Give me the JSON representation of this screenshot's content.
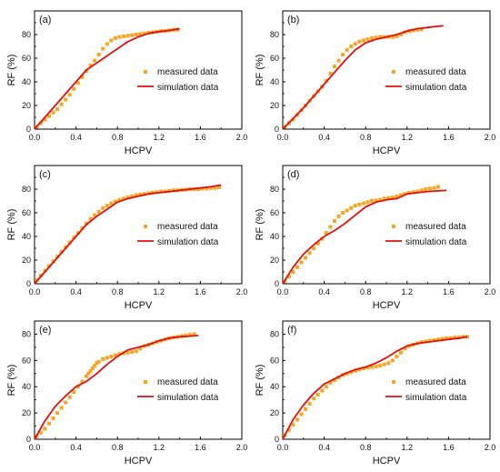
{
  "chart_data": [
    {
      "panel": "(a)",
      "type": "scatter+line",
      "xlabel": "HCPV",
      "ylabel": "RF (%)",
      "xlim": [
        0.0,
        2.0
      ],
      "ylim": [
        0,
        100
      ],
      "xticks": [
        "0.0",
        "0.4",
        "0.8",
        "1.2",
        "1.6",
        "2.0"
      ],
      "yticks": [
        "0",
        "20",
        "40",
        "60",
        "80"
      ],
      "legend": {
        "position": "center-right",
        "entries": [
          "measured data",
          "simulation data"
        ]
      },
      "series": [
        {
          "name": "measured data",
          "kind": "scatter",
          "x": [
            0.02,
            0.06,
            0.1,
            0.14,
            0.18,
            0.22,
            0.26,
            0.3,
            0.34,
            0.38,
            0.42,
            0.46,
            0.5,
            0.54,
            0.58,
            0.62,
            0.66,
            0.7,
            0.74,
            0.78,
            0.82,
            0.86,
            0.9,
            0.94,
            0.98,
            1.02,
            1.06,
            1.1,
            1.14,
            1.18,
            1.22,
            1.26,
            1.3,
            1.34,
            1.38
          ],
          "y": [
            2,
            5,
            8,
            11,
            14,
            17,
            21,
            25,
            29,
            34,
            39,
            44,
            49,
            54,
            58,
            63,
            68,
            72,
            75,
            77,
            78,
            78.5,
            79,
            79.5,
            80,
            80.5,
            81,
            81.5,
            82,
            82.5,
            83,
            83,
            83.5,
            84,
            84
          ]
        },
        {
          "name": "simulation data",
          "kind": "line",
          "x": [
            0,
            0.2,
            0.4,
            0.5,
            0.6,
            0.7,
            0.8,
            0.9,
            1.0,
            1.1,
            1.2,
            1.3,
            1.4
          ],
          "y": [
            0,
            20,
            40,
            50,
            56,
            62,
            68,
            74,
            78,
            81,
            82.5,
            83.5,
            85
          ]
        }
      ]
    },
    {
      "panel": "(b)",
      "type": "scatter+line",
      "xlabel": "HCPV",
      "ylabel": "RF (%)",
      "xlim": [
        0.0,
        2.0
      ],
      "ylim": [
        0,
        100
      ],
      "xticks": [
        "0.0",
        "0.4",
        "0.8",
        "1.2",
        "1.6",
        "2.0"
      ],
      "yticks": [
        "0",
        "20",
        "40",
        "60",
        "80"
      ],
      "legend": {
        "position": "center-right",
        "entries": [
          "measured data",
          "simulation data"
        ]
      },
      "series": [
        {
          "name": "measured data",
          "kind": "scatter",
          "x": [
            0.02,
            0.06,
            0.1,
            0.14,
            0.18,
            0.22,
            0.26,
            0.3,
            0.34,
            0.38,
            0.42,
            0.46,
            0.5,
            0.54,
            0.58,
            0.62,
            0.66,
            0.7,
            0.74,
            0.78,
            0.82,
            0.86,
            0.9,
            0.94,
            0.98,
            1.02,
            1.06,
            1.1,
            1.14,
            1.18,
            1.22,
            1.26,
            1.3,
            1.34
          ],
          "y": [
            2,
            5,
            8,
            12,
            16,
            20,
            24,
            28,
            32,
            36,
            41,
            47,
            53,
            58,
            63,
            67,
            70,
            72,
            74,
            75,
            76,
            77,
            77.5,
            78,
            78,
            78,
            78,
            78.5,
            80,
            82,
            83,
            83.5,
            84,
            84.5
          ]
        },
        {
          "name": "simulation data",
          "kind": "line",
          "x": [
            0,
            0.2,
            0.4,
            0.5,
            0.6,
            0.7,
            0.8,
            0.9,
            1.0,
            1.1,
            1.2,
            1.3,
            1.4,
            1.5,
            1.55
          ],
          "y": [
            0,
            18,
            38,
            48,
            58,
            67,
            73,
            76,
            78,
            80,
            83,
            85,
            86,
            87,
            87.5
          ]
        }
      ]
    },
    {
      "panel": "(c)",
      "type": "scatter+line",
      "xlabel": "HCPV",
      "ylabel": "RF (%)",
      "xlim": [
        0.0,
        2.0
      ],
      "ylim": [
        0,
        100
      ],
      "xticks": [
        "0.0",
        "0.4",
        "0.8",
        "1.2",
        "1.6",
        "2.0"
      ],
      "yticks": [
        "0",
        "20",
        "40",
        "60",
        "80"
      ],
      "legend": {
        "position": "center-right",
        "entries": [
          "measured data",
          "simulation data"
        ]
      },
      "series": [
        {
          "name": "measured data",
          "kind": "scatter",
          "x": [
            0.02,
            0.06,
            0.1,
            0.14,
            0.18,
            0.22,
            0.26,
            0.3,
            0.34,
            0.38,
            0.42,
            0.46,
            0.5,
            0.54,
            0.58,
            0.62,
            0.66,
            0.7,
            0.74,
            0.78,
            0.82,
            0.86,
            0.9,
            0.94,
            0.98,
            1.02,
            1.06,
            1.1,
            1.14,
            1.18,
            1.22,
            1.26,
            1.3,
            1.34,
            1.38,
            1.42,
            1.46,
            1.5,
            1.54,
            1.58,
            1.62,
            1.66,
            1.7,
            1.74,
            1.78
          ],
          "y": [
            3,
            7,
            11,
            15,
            19,
            23,
            27,
            31,
            35,
            39,
            43,
            47,
            51,
            55,
            58,
            61,
            64,
            66,
            68,
            69.5,
            71,
            72,
            73,
            74,
            75,
            75.5,
            76,
            76.5,
            77,
            77.5,
            78,
            78,
            78.5,
            79,
            79,
            79.5,
            79.5,
            80,
            80,
            80,
            80.5,
            80.5,
            81,
            81,
            81.5
          ]
        },
        {
          "name": "simulation data",
          "kind": "line",
          "x": [
            0,
            0.2,
            0.4,
            0.5,
            0.6,
            0.7,
            0.8,
            0.9,
            1.0,
            1.1,
            1.2,
            1.3,
            1.4,
            1.5,
            1.6,
            1.7,
            1.8
          ],
          "y": [
            0,
            20,
            40,
            50,
            57,
            63,
            69,
            72,
            74,
            76,
            77,
            78,
            79,
            80,
            81,
            82,
            83.5
          ]
        }
      ]
    },
    {
      "panel": "(d)",
      "type": "scatter+line",
      "xlabel": "HCPV",
      "ylabel": "RF (%)",
      "xlim": [
        0.0,
        2.0
      ],
      "ylim": [
        0,
        100
      ],
      "xticks": [
        "0.0",
        "0.4",
        "0.8",
        "1.2",
        "1.6",
        "2.0"
      ],
      "yticks": [
        "0",
        "20",
        "40",
        "60",
        "80"
      ],
      "legend": {
        "position": "center-right",
        "entries": [
          "measured data",
          "simulation data"
        ]
      },
      "series": [
        {
          "name": "measured data",
          "kind": "scatter",
          "x": [
            0.02,
            0.06,
            0.1,
            0.14,
            0.18,
            0.22,
            0.26,
            0.3,
            0.34,
            0.38,
            0.42,
            0.46,
            0.5,
            0.54,
            0.58,
            0.62,
            0.66,
            0.7,
            0.74,
            0.78,
            0.82,
            0.86,
            0.9,
            0.94,
            0.98,
            1.02,
            1.06,
            1.1,
            1.14,
            1.18,
            1.22,
            1.26,
            1.3,
            1.34,
            1.38,
            1.42,
            1.46,
            1.5
          ],
          "y": [
            2,
            6,
            10,
            14,
            18,
            22,
            26,
            30,
            34,
            38,
            43,
            48,
            53,
            57,
            60,
            62,
            64,
            66,
            67,
            68,
            69,
            70,
            70.5,
            71,
            72,
            72.5,
            73,
            74,
            75,
            76,
            77,
            77.5,
            78,
            79,
            80,
            80.5,
            81,
            82
          ]
        },
        {
          "name": "simulation data",
          "kind": "line",
          "x": [
            0,
            0.1,
            0.2,
            0.3,
            0.4,
            0.5,
            0.6,
            0.7,
            0.8,
            0.9,
            1.0,
            1.1,
            1.2,
            1.3,
            1.4,
            1.5,
            1.58
          ],
          "y": [
            0,
            14,
            25,
            33,
            40,
            45,
            51,
            58,
            65,
            69,
            71,
            72,
            76,
            77,
            78,
            78.5,
            79
          ]
        }
      ]
    },
    {
      "panel": "(e)",
      "type": "scatter+line",
      "xlabel": "HCPV",
      "ylabel": "RF (%)",
      "xlim": [
        0.0,
        2.0
      ],
      "ylim": [
        0,
        90
      ],
      "xticks": [
        "0.0",
        "0.4",
        "0.8",
        "1.2",
        "1.6",
        "2.0"
      ],
      "yticks": [
        "0",
        "20",
        "40",
        "60",
        "80"
      ],
      "legend": {
        "position": "center-right",
        "entries": [
          "measured data",
          "simulation data"
        ]
      },
      "series": [
        {
          "name": "measured data",
          "kind": "scatter",
          "x": [
            0.02,
            0.06,
            0.1,
            0.14,
            0.18,
            0.22,
            0.26,
            0.3,
            0.34,
            0.38,
            0.42,
            0.46,
            0.5,
            0.52,
            0.54,
            0.56,
            0.58,
            0.6,
            0.62,
            0.66,
            0.7,
            0.74,
            0.78,
            0.82,
            0.86,
            0.9,
            0.94,
            0.98,
            1.02,
            1.06,
            1.1,
            1.14,
            1.18,
            1.22,
            1.26,
            1.3,
            1.34,
            1.38,
            1.42,
            1.46,
            1.5,
            1.54
          ],
          "y": [
            2,
            5,
            8,
            12,
            16,
            20,
            24,
            28,
            32,
            36,
            40,
            44,
            48,
            50,
            52,
            54,
            56,
            58,
            59,
            61,
            62,
            63,
            64,
            65,
            65.5,
            66,
            66.5,
            67,
            69,
            71,
            72,
            73,
            74,
            75,
            76,
            77,
            77.5,
            78,
            78.5,
            79,
            79.5,
            80
          ]
        },
        {
          "name": "simulation data",
          "kind": "line",
          "x": [
            0,
            0.1,
            0.2,
            0.3,
            0.4,
            0.5,
            0.6,
            0.7,
            0.8,
            0.9,
            1.0,
            1.1,
            1.2,
            1.3,
            1.4,
            1.5,
            1.58
          ],
          "y": [
            0,
            14,
            25,
            33,
            40,
            44,
            50,
            57,
            63,
            68,
            70,
            72,
            75,
            77,
            78,
            78.5,
            79
          ]
        }
      ]
    },
    {
      "panel": "(f)",
      "type": "scatter+line",
      "xlabel": "HCPV",
      "ylabel": "RF (%)",
      "xlim": [
        0.0,
        2.0
      ],
      "ylim": [
        0,
        90
      ],
      "xticks": [
        "0.0",
        "0.4",
        "0.8",
        "1.2",
        "1.6",
        "2.0"
      ],
      "yticks": [
        "0",
        "20",
        "40",
        "60",
        "80"
      ],
      "legend": {
        "position": "center-right",
        "entries": [
          "measured data",
          "simulation data"
        ]
      },
      "series": [
        {
          "name": "measured data",
          "kind": "scatter",
          "x": [
            0.02,
            0.06,
            0.1,
            0.14,
            0.18,
            0.22,
            0.26,
            0.3,
            0.34,
            0.38,
            0.42,
            0.46,
            0.5,
            0.54,
            0.58,
            0.62,
            0.66,
            0.7,
            0.74,
            0.78,
            0.82,
            0.86,
            0.9,
            0.94,
            0.98,
            1.02,
            1.06,
            1.1,
            1.14,
            1.18,
            1.22,
            1.26,
            1.3,
            1.34,
            1.38,
            1.42,
            1.46,
            1.5,
            1.54,
            1.58,
            1.62,
            1.66,
            1.7,
            1.74,
            1.78
          ],
          "y": [
            3,
            7,
            11,
            15,
            19,
            23,
            27,
            31,
            34,
            37,
            40,
            43,
            45,
            47,
            49,
            50,
            51,
            52,
            53,
            54,
            54.5,
            55,
            55.5,
            56,
            57,
            58,
            60,
            63,
            66,
            69,
            71,
            72,
            73,
            74,
            74.5,
            75,
            75.5,
            76,
            76.5,
            77,
            77,
            77.5,
            77.5,
            78,
            78
          ]
        },
        {
          "name": "simulation data",
          "kind": "line",
          "x": [
            0,
            0.1,
            0.2,
            0.3,
            0.4,
            0.5,
            0.6,
            0.7,
            0.8,
            0.9,
            1.0,
            1.1,
            1.2,
            1.3,
            1.4,
            1.5,
            1.6,
            1.7,
            1.78
          ],
          "y": [
            0,
            15,
            26,
            35,
            42,
            46,
            50,
            53,
            55,
            58,
            62,
            67,
            71,
            73,
            74,
            75,
            76,
            77,
            78
          ]
        }
      ]
    }
  ],
  "colors": {
    "measured": "#f5a623",
    "simulation": "#e01010",
    "axis": "#000000"
  }
}
